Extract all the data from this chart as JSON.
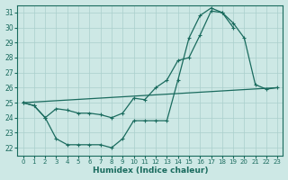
{
  "xlabel": "Humidex (Indice chaleur)",
  "xlim": [
    -0.5,
    23.5
  ],
  "ylim": [
    21.5,
    31.5
  ],
  "yticks": [
    22,
    23,
    24,
    25,
    26,
    27,
    28,
    29,
    30,
    31
  ],
  "xticks": [
    0,
    1,
    2,
    3,
    4,
    5,
    6,
    7,
    8,
    9,
    10,
    11,
    12,
    13,
    14,
    15,
    16,
    17,
    18,
    19,
    20,
    21,
    22,
    23
  ],
  "bg_color": "#cde8e5",
  "grid_color": "#aacfcc",
  "line_color": "#1a6b5e",
  "line1_x": [
    0,
    1,
    2,
    3,
    4,
    5,
    6,
    7,
    8,
    9,
    10,
    11,
    12,
    13,
    14,
    15,
    16,
    17,
    18,
    19,
    20,
    21,
    22,
    23
  ],
  "line1_y": [
    25.0,
    24.8,
    24.0,
    22.6,
    22.2,
    22.2,
    22.2,
    22.2,
    22.0,
    22.6,
    23.8,
    23.8,
    23.8,
    23.8,
    26.5,
    29.3,
    30.8,
    31.3,
    31.0,
    30.3,
    29.3,
    26.2,
    25.9,
    26.0
  ],
  "line2_x": [
    0,
    1,
    2,
    3,
    4,
    5,
    6,
    7,
    8,
    9,
    10,
    11,
    12,
    13,
    14,
    15,
    16,
    17,
    18,
    19,
    20,
    21,
    22,
    23
  ],
  "line2_y": [
    25.0,
    24.8,
    24.0,
    24.6,
    24.5,
    24.3,
    24.3,
    24.2,
    24.0,
    24.3,
    25.3,
    25.2,
    26.0,
    26.5,
    27.8,
    28.0,
    29.5,
    31.1,
    31.0,
    30.0,
    null,
    null,
    null,
    null
  ],
  "line3_x": [
    0,
    23
  ],
  "line3_y": [
    25.0,
    26.0
  ]
}
